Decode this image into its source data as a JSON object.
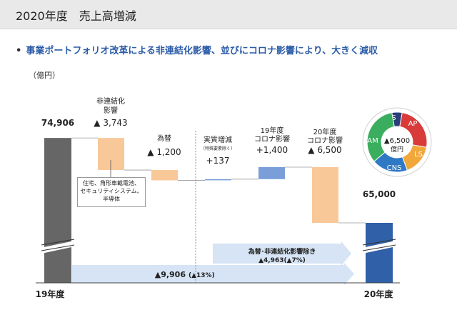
{
  "header": {
    "title": "2020年度　売上高増減"
  },
  "subtitle": {
    "bullet": "•",
    "text": "事業ポートフォリオ改革による非連結化影響、並びにコロナ影響により、大きく減収"
  },
  "unit": "（億円）",
  "colors": {
    "total_fy19": "#666666",
    "total_fy20": "#3060a8",
    "decrease": "#f8c898",
    "increase": "#7a9ed8",
    "arrow": "#d6e4f5",
    "text_blue": "#2a5ba8"
  },
  "chart_data": {
    "type": "waterfall",
    "title": "2020年度　売上高増減",
    "ylabel": "億円",
    "ylim_broken_display": [
      58000,
      76000
    ],
    "steps": [
      {
        "key": "fy19",
        "category": "19年度",
        "kind": "total",
        "value": 74906,
        "value_label": "74,906"
      },
      {
        "key": "deconsolidation",
        "category_lines": [
          "非連結化",
          "影響"
        ],
        "kind": "decrease",
        "value": -3743,
        "value_label": "▲ 3,743"
      },
      {
        "key": "fx",
        "category_lines": [
          "為替"
        ],
        "kind": "decrease",
        "value": -1200,
        "value_label": "▲ 1,200"
      },
      {
        "key": "real",
        "category_lines": [
          "実質増減"
        ],
        "sub_label": "（特殊要素除く）",
        "kind": "increase",
        "value": 137,
        "value_label": "+137"
      },
      {
        "key": "corona19",
        "category_lines": [
          "19年度",
          "コロナ影響"
        ],
        "kind": "increase",
        "value": 1400,
        "value_label": "+1,400"
      },
      {
        "key": "corona20",
        "category_lines": [
          "20年度",
          "コロナ影響"
        ],
        "kind": "decrease",
        "value": -6500,
        "value_label": "▲ 6,500"
      },
      {
        "key": "fy20",
        "category": "20年度",
        "kind": "total",
        "value": 65000,
        "value_label": "65,000"
      }
    ],
    "annotations": {
      "deconsolidation_note": [
        "住宅、角形車載電池、",
        "セキュリティシステム、",
        "半導体"
      ],
      "excl_arrow": {
        "line1": "為替･非連結化影響除き",
        "line2": "▲4,963(▲7%)"
      },
      "total_arrow": {
        "main": "▲9,906",
        "pct": "(▲13%)"
      }
    },
    "inset_pie": {
      "type": "pie",
      "center_value": "▲6,500",
      "center_unit": "億円",
      "segments": [
        {
          "name": "IS",
          "color": "#2a3f7a"
        },
        {
          "name": "AP",
          "color": "#d93a3a"
        },
        {
          "name": "LS",
          "color": "#f1a73a"
        },
        {
          "name": "CNS",
          "color": "#2f79c4"
        },
        {
          "name": "AM",
          "color": "#3aae5e"
        }
      ]
    }
  }
}
